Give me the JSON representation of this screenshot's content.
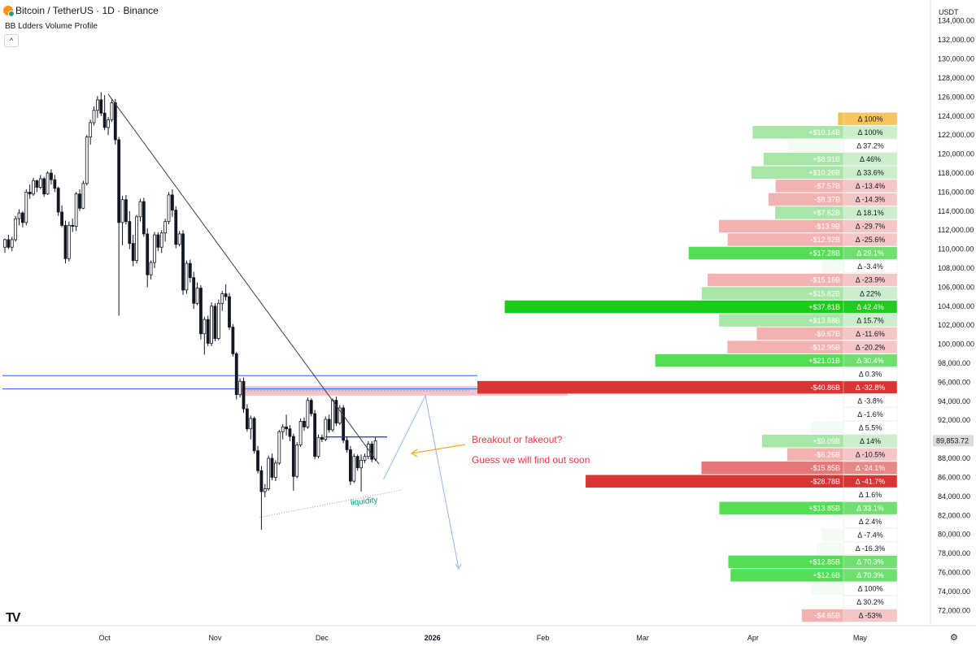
{
  "header": {
    "title": "Bitcoin / TetherUS · 1D · Binance",
    "indicator": "BB Ldders Volume Profile",
    "collapse_glyph": "^",
    "unit": "USDT",
    "logo_text": "TV",
    "settings_glyph": "⚙"
  },
  "annotations": {
    "headline": "Breakout or fakeout?",
    "subline": "Guess we will find out soon",
    "liquidity": "liquidity"
  },
  "colors": {
    "up_candle": "#ffffff",
    "down_candle": "#131722",
    "trendline": "#3a3f4b",
    "level_line": "#2962ff",
    "annotation_text": "#f23645",
    "liquidity_text": "#089981",
    "projection": "#90b4f5",
    "arrow": "#f5a623"
  },
  "chart_data": {
    "type": "candlestick",
    "price_axis": {
      "min": 70400,
      "max": 136200,
      "ticks": [
        72000,
        74000,
        76000,
        78000,
        80000,
        82000,
        84000,
        86000,
        88000,
        90000,
        92000,
        94000,
        96000,
        98000,
        100000,
        102000,
        104000,
        106000,
        108000,
        110000,
        112000,
        114000,
        116000,
        118000,
        120000,
        122000,
        124000,
        126000,
        128000,
        130000,
        132000,
        134000
      ],
      "tick_labels": [
        "72,000.00",
        "74,000.00",
        "76,000.00",
        "78,000.00",
        "80,000.00",
        "82,000.00",
        "84,000.00",
        "86,000.00",
        "88,000.00",
        "90,000.00",
        "92,000.00",
        "94,000.00",
        "96,000.00",
        "98,000.00",
        "100,000.00",
        "102,000.00",
        "104,000.00",
        "106,000.00",
        "108,000.00",
        "110,000.00",
        "112,000.00",
        "114,000.00",
        "116,000.00",
        "118,000.00",
        "120,000.00",
        "122,000.00",
        "124,000.00",
        "126,000.00",
        "128,000.00",
        "130,000.00",
        "132,000.00",
        "134,000.00"
      ],
      "current_price": 89853.72,
      "current_price_label": "89,853.72"
    },
    "time_axis": {
      "labels": [
        {
          "text": "Oct",
          "day": 0
        },
        {
          "text": "Nov",
          "day": 31
        },
        {
          "text": "Dec",
          "day": 61
        },
        {
          "text": "2026",
          "day": 92
        },
        {
          "text": "Feb",
          "day": 123
        },
        {
          "text": "Mar",
          "day": 151
        },
        {
          "text": "Apr",
          "day": 182
        },
        {
          "text": "May",
          "day": 212
        }
      ],
      "first_day": -28,
      "last_day": 219
    },
    "candles": [
      [
        -28,
        110200,
        111100,
        109600,
        111000
      ],
      [
        -27,
        111000,
        111500,
        110000,
        110200
      ],
      [
        -26,
        110200,
        111300,
        109800,
        111000
      ],
      [
        -25,
        111000,
        113500,
        110800,
        113200
      ],
      [
        -24,
        113200,
        114200,
        112500,
        113800
      ],
      [
        -23,
        113800,
        114000,
        112300,
        112800
      ],
      [
        -22,
        112800,
        116300,
        112500,
        116000
      ],
      [
        -21,
        116000,
        116800,
        115300,
        115800
      ],
      [
        -20,
        115800,
        117500,
        115600,
        117200
      ],
      [
        -19,
        117200,
        117300,
        116000,
        116500
      ],
      [
        -18,
        116500,
        117800,
        116300,
        117400
      ],
      [
        -17,
        117400,
        117600,
        115500,
        115800
      ],
      [
        -16,
        115800,
        118200,
        115700,
        118000
      ],
      [
        -15,
        118000,
        118400,
        116800,
        117300
      ],
      [
        -14,
        117300,
        117800,
        116000,
        116400
      ],
      [
        -13,
        116400,
        116600,
        113500,
        113900
      ],
      [
        -12,
        113900,
        114600,
        112300,
        112500
      ],
      [
        -11,
        112500,
        113000,
        108500,
        109000
      ],
      [
        -10,
        109000,
        112900,
        108700,
        112500
      ],
      [
        -9,
        112500,
        113200,
        111800,
        112400
      ],
      [
        -8,
        112400,
        116000,
        111900,
        115800
      ],
      [
        -7,
        115800,
        116300,
        114000,
        114300
      ],
      [
        -6,
        114300,
        117200,
        114200,
        116900
      ],
      [
        -5,
        116900,
        122000,
        116700,
        121800
      ],
      [
        -4,
        121800,
        123600,
        121000,
        123300
      ],
      [
        -3,
        123300,
        125000,
        123000,
        124600
      ],
      [
        -2,
        124600,
        126100,
        123800,
        125700
      ],
      [
        -1,
        125700,
        126500,
        124000,
        124300
      ],
      [
        0,
        124300,
        126200,
        122500,
        122800
      ],
      [
        1,
        122800,
        123900,
        122000,
        123600
      ],
      [
        2,
        123600,
        125700,
        123400,
        125400
      ],
      [
        3,
        125400,
        125800,
        121000,
        121500
      ],
      [
        4,
        121500,
        121800,
        103000,
        112800
      ],
      [
        5,
        112800,
        115600,
        110400,
        115200
      ],
      [
        6,
        115200,
        115700,
        112600,
        112900
      ],
      [
        7,
        112900,
        114000,
        110000,
        110600
      ],
      [
        8,
        110600,
        111500,
        108200,
        108800
      ],
      [
        9,
        108800,
        113600,
        108500,
        113400
      ],
      [
        10,
        113400,
        115300,
        112900,
        115000
      ],
      [
        11,
        115000,
        115400,
        111300,
        111600
      ],
      [
        12,
        111600,
        112200,
        106000,
        107300
      ],
      [
        13,
        107300,
        108800,
        106800,
        108600
      ],
      [
        14,
        108600,
        111800,
        108000,
        111500
      ],
      [
        15,
        111500,
        111800,
        109800,
        110200
      ],
      [
        16,
        110200,
        112000,
        109600,
        111700
      ],
      [
        17,
        111700,
        113200,
        110800,
        112900
      ],
      [
        18,
        112900,
        116000,
        112600,
        115700
      ],
      [
        19,
        115700,
        116300,
        113400,
        114100
      ],
      [
        20,
        114100,
        114500,
        110100,
        110500
      ],
      [
        21,
        110500,
        111900,
        110300,
        111600
      ],
      [
        22,
        111600,
        112000,
        105200,
        105700
      ],
      [
        23,
        105700,
        108800,
        105300,
        108500
      ],
      [
        24,
        108500,
        108900,
        106500,
        107000
      ],
      [
        25,
        107000,
        107600,
        103700,
        104300
      ],
      [
        26,
        104300,
        106500,
        104100,
        105900
      ],
      [
        27,
        105900,
        106200,
        100500,
        101100
      ],
      [
        28,
        101100,
        102900,
        98900,
        102600
      ],
      [
        29,
        102600,
        103000,
        99800,
        100100
      ],
      [
        30,
        100100,
        104400,
        99800,
        104000
      ],
      [
        31,
        104000,
        104300,
        100300,
        100600
      ],
      [
        32,
        100600,
        104700,
        100400,
        104300
      ],
      [
        33,
        104300,
        105600,
        103500,
        105300
      ],
      [
        34,
        105300,
        106300,
        104600,
        105000
      ],
      [
        35,
        105000,
        105400,
        101500,
        101800
      ],
      [
        36,
        101800,
        102100,
        98700,
        99000
      ],
      [
        37,
        99000,
        99200,
        94200,
        94700
      ],
      [
        38,
        94700,
        96400,
        94400,
        96100
      ],
      [
        39,
        96100,
        96500,
        92800,
        93200
      ],
      [
        40,
        93200,
        93700,
        90800,
        91100
      ],
      [
        41,
        91100,
        92500,
        90000,
        92200
      ],
      [
        42,
        92200,
        92400,
        88500,
        88800
      ],
      [
        43,
        88800,
        89300,
        86400,
        86700
      ],
      [
        44,
        86700,
        87200,
        80500,
        84500
      ],
      [
        45,
        84500,
        85300,
        83900,
        84800
      ],
      [
        46,
        84800,
        88300,
        84600,
        88000
      ],
      [
        47,
        88000,
        88500,
        85700,
        86000
      ],
      [
        48,
        86000,
        87800,
        85600,
        87500
      ],
      [
        49,
        87500,
        91000,
        87300,
        90800
      ],
      [
        50,
        90800,
        91600,
        90000,
        91300
      ],
      [
        51,
        91300,
        92600,
        90400,
        91100
      ],
      [
        52,
        91100,
        91500,
        89800,
        90300
      ],
      [
        53,
        90300,
        90600,
        84600,
        86100
      ],
      [
        54,
        86100,
        89700,
        85900,
        89400
      ],
      [
        55,
        89400,
        92200,
        89200,
        91900
      ],
      [
        56,
        91900,
        92300,
        90900,
        91300
      ],
      [
        57,
        91300,
        94400,
        91100,
        94100
      ],
      [
        58,
        94100,
        94300,
        92400,
        92700
      ],
      [
        59,
        92700,
        93100,
        87900,
        88200
      ],
      [
        60,
        88200,
        90500,
        88000,
        90200
      ],
      [
        61,
        90200,
        90500,
        89700,
        90000
      ],
      [
        62,
        90000,
        92400,
        89800,
        92100
      ],
      [
        63,
        92100,
        92600,
        90700,
        91000
      ],
      [
        64,
        91000,
        94300,
        90800,
        94100
      ],
      [
        65,
        94100,
        94500,
        91400,
        91700
      ],
      [
        66,
        91700,
        93600,
        91500,
        93300
      ],
      [
        67,
        93300,
        93600,
        89600,
        89900
      ],
      [
        68,
        89900,
        90300,
        88600,
        88900
      ],
      [
        69,
        88900,
        89300,
        85200,
        85600
      ],
      [
        70,
        85600,
        88500,
        85400,
        88200
      ],
      [
        71,
        88200,
        88400,
        86700,
        87000
      ],
      [
        72,
        87000,
        88400,
        84500,
        87800
      ],
      [
        73,
        87800,
        88500,
        87500,
        88200
      ],
      [
        74,
        88200,
        89800,
        87900,
        89500
      ],
      [
        75,
        89500,
        89800,
        87600,
        87900
      ],
      [
        76,
        87900,
        90200,
        87700,
        89850
      ]
    ],
    "volume_profile": {
      "rows": [
        {
          "price": 126000,
          "bar_label": "",
          "delta_label": "Δ 100%",
          "value": 0.6,
          "color": "gold"
        },
        {
          "price": 124000,
          "bar_label": "+$10.14B",
          "delta_label": "Δ 100%",
          "value": 10.14,
          "color": "green"
        },
        {
          "price": 122000,
          "bar_label": "",
          "delta_label": "Δ 37.2%",
          "value": 6.2,
          "color": "faint"
        },
        {
          "price": 120000,
          "bar_label": "+$8.91B",
          "delta_label": "Δ 46%",
          "value": 8.91,
          "color": "green"
        },
        {
          "price": 118000,
          "bar_label": "+$10.26B",
          "delta_label": "Δ 33.6%",
          "value": 10.26,
          "color": "green"
        },
        {
          "price": 116000,
          "bar_label": "-$7.57B",
          "delta_label": "Δ -13.4%",
          "value": 7.57,
          "color": "red"
        },
        {
          "price": 114000,
          "bar_label": "-$8.37B",
          "delta_label": "Δ -14.3%",
          "value": 8.37,
          "color": "red"
        },
        {
          "price": 112000,
          "bar_label": "+$7.62B",
          "delta_label": "Δ 18.1%",
          "value": 7.62,
          "color": "green"
        },
        {
          "price": 110000,
          "bar_label": "-$13.9B",
          "delta_label": "Δ -29.7%",
          "value": 13.9,
          "color": "red"
        },
        {
          "price": 108000,
          "bar_label": "-$12.92B",
          "delta_label": "Δ -25.6%",
          "value": 12.92,
          "color": "red"
        },
        {
          "price": 106000,
          "bar_label": "+$17.28B",
          "delta_label": "Δ 29.1%",
          "value": 17.28,
          "color": "green_strong"
        },
        {
          "price": 104000,
          "bar_label": "",
          "delta_label": "Δ -3.4%",
          "value": 2.4,
          "color": "faint"
        },
        {
          "price": 102000,
          "bar_label": "-$15.16B",
          "delta_label": "Δ -23.9%",
          "value": 15.16,
          "color": "red"
        },
        {
          "price": 100000,
          "bar_label": "+$15.82B",
          "delta_label": "Δ 22%",
          "value": 15.82,
          "color": "green"
        },
        {
          "price": 98000,
          "bar_label": "+$37.81B",
          "delta_label": "Δ 42.4%",
          "value": 37.81,
          "color": "green_max"
        },
        {
          "price": 96000,
          "bar_label": "+$13.88B",
          "delta_label": "Δ 15.7%",
          "value": 13.88,
          "color": "green"
        },
        {
          "price": 94000,
          "bar_label": "-$9.67B",
          "delta_label": "Δ -11.6%",
          "value": 9.67,
          "color": "red"
        },
        {
          "price": 92000,
          "bar_label": "-$12.95B",
          "delta_label": "Δ -20.2%",
          "value": 12.95,
          "color": "red"
        },
        {
          "price": 90000,
          "bar_label": "+$21.01B",
          "delta_label": "Δ 30.4%",
          "value": 21.01,
          "color": "green_strong"
        },
        {
          "price": 88000,
          "bar_label": "",
          "delta_label": "Δ 0.3%",
          "value": 0,
          "color": "faint"
        },
        {
          "price": 86000,
          "bar_label": "-$40.86B",
          "delta_label": "Δ -32.8%",
          "value": 40.86,
          "color": "red_max"
        },
        {
          "price": 84000,
          "bar_label": "",
          "delta_label": "Δ -3.8%",
          "value": 0,
          "color": "faint"
        },
        {
          "price": 82000,
          "bar_label": "",
          "delta_label": "Δ -1.6%",
          "value": 0,
          "color": "faint"
        },
        {
          "price": 80000,
          "bar_label": "",
          "delta_label": "Δ 5.5%",
          "value": 3.6,
          "color": "faint"
        },
        {
          "price": 78000,
          "bar_label": "+$9.09B",
          "delta_label": "Δ 14%",
          "value": 9.09,
          "color": "green"
        },
        {
          "price": 76000,
          "bar_label": "-$6.26B",
          "delta_label": "Δ -10.5%",
          "value": 6.26,
          "color": "red"
        },
        {
          "price": 74000,
          "bar_label": "-$15.85B",
          "delta_label": "Δ -24.1%",
          "value": 15.85,
          "color": "red_strong"
        },
        {
          "price": 72000,
          "bar_label": "-$28.78B",
          "delta_label": "Δ -41.7%",
          "value": 28.78,
          "color": "red_max"
        },
        {
          "price": 70000,
          "bar_label": "",
          "delta_label": "Δ 1.6%",
          "value": 0,
          "color": "faint"
        },
        {
          "price": 68000,
          "bar_label": "+$13.85B",
          "delta_label": "Δ 33.1%",
          "value": 13.85,
          "color": "green_strong"
        },
        {
          "price": 66000,
          "bar_label": "",
          "delta_label": "Δ 2.4%",
          "value": 0,
          "color": "faint"
        },
        {
          "price": 64000,
          "bar_label": "",
          "delta_label": "Δ -7.4%",
          "value": 2.4,
          "color": "faint"
        },
        {
          "price": 62000,
          "bar_label": "",
          "delta_label": "Δ -16.3%",
          "value": 3.0,
          "color": "faint"
        },
        {
          "price": 60000,
          "bar_label": "+$12.85B",
          "delta_label": "Δ 70.3%",
          "value": 12.85,
          "color": "green_strong"
        },
        {
          "price": 58000,
          "bar_label": "+$12.6B",
          "delta_label": "Δ 70.3%",
          "value": 12.6,
          "color": "green_strong"
        },
        {
          "price": 56000,
          "bar_label": "",
          "delta_label": "Δ 100%",
          "value": 3.6,
          "color": "faint"
        },
        {
          "price": 54000,
          "bar_label": "",
          "delta_label": "Δ 30.2%",
          "value": 0,
          "color": "faint"
        },
        {
          "price": 52000,
          "bar_label": "-$4.65B",
          "delta_label": "Δ -53%",
          "value": 4.65,
          "color": "red"
        }
      ]
    },
    "levels": [
      96700,
      95300
    ],
    "zone": {
      "from_price": 94600,
      "to_price": 95600,
      "from_day": 38,
      "to_day": 130
    },
    "trendline": {
      "from": [
        1,
        126300
      ],
      "to": [
        77,
        87400
      ]
    },
    "local_resistance": {
      "price": 90250,
      "from_day": 62,
      "to_day": 77
    }
  }
}
